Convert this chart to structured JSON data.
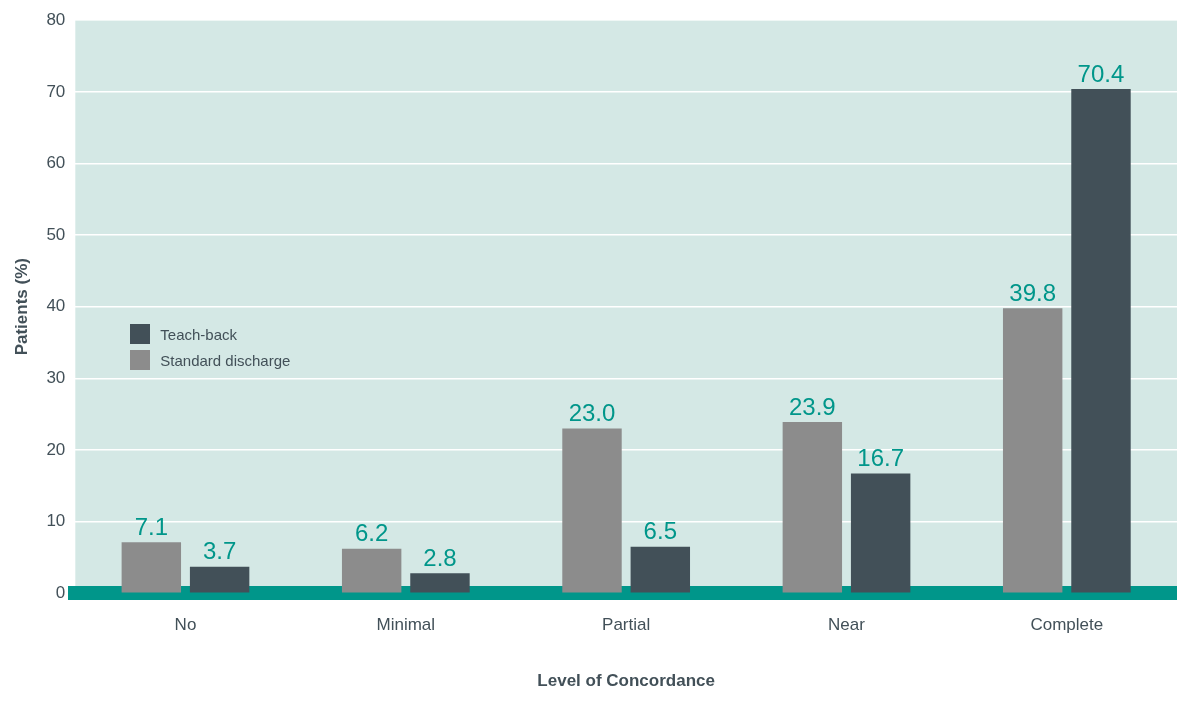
{
  "chart_data": {
    "type": "bar",
    "xlabel": "Level of Concordance",
    "ylabel": "Patients (%)",
    "categories": [
      "No",
      "Minimal",
      "Partial",
      "Near",
      "Complete"
    ],
    "series": [
      {
        "name": "Standard discharge",
        "color": "#8c8c8c",
        "values": [
          7.1,
          6.2,
          23.0,
          23.9,
          39.8
        ],
        "value_labels": [
          "7.1",
          "6.2",
          "23.0",
          "23.9",
          "39.8"
        ]
      },
      {
        "name": "Teach-back",
        "color": "#425058",
        "values": [
          3.7,
          2.8,
          6.5,
          16.7,
          70.4
        ],
        "value_labels": [
          "3.7",
          "2.8",
          "6.5",
          "16.7",
          "70.4"
        ]
      }
    ],
    "ylim": [
      0,
      80
    ],
    "yticks": [
      0,
      10,
      20,
      30,
      40,
      50,
      60,
      70,
      80
    ],
    "grid": "y",
    "legend": "left"
  }
}
